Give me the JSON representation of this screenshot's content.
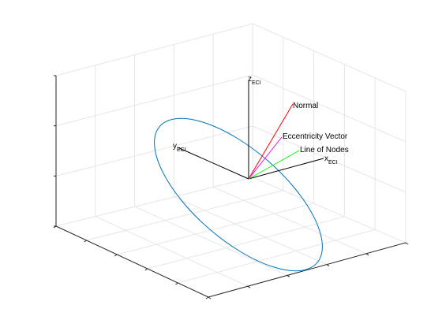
{
  "chart_data": {
    "type": "3d-line",
    "title": "",
    "xlabel": "",
    "ylabel": "",
    "zlabel": "",
    "grid": true,
    "series": [
      {
        "kind": "axis",
        "label": "x",
        "subscript": "ECI",
        "color": "#000000"
      },
      {
        "kind": "axis",
        "label": "y",
        "subscript": "ECI",
        "color": "#000000"
      },
      {
        "kind": "axis",
        "label": "z",
        "subscript": "ECI",
        "color": "#000000"
      },
      {
        "kind": "vector",
        "label": "Normal",
        "color": "#ff0000"
      },
      {
        "kind": "vector",
        "label": "Eccentricity Vector",
        "color": "#ff00ff"
      },
      {
        "kind": "vector",
        "label": "Line of Nodes",
        "color": "#00ff00"
      },
      {
        "kind": "orbit",
        "label": "",
        "color": "#0072bd"
      }
    ]
  }
}
